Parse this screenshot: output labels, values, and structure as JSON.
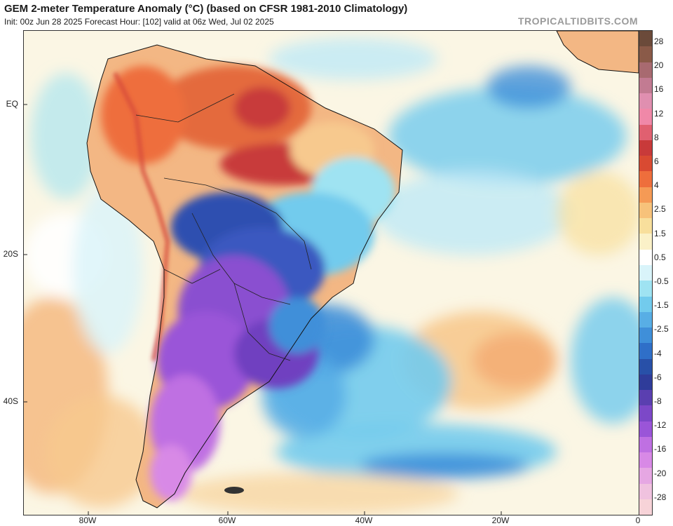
{
  "header": {
    "title": "GEM 2-meter Temperature Anomaly (°C) (based on CFSR 1981-2010 Climatology)",
    "subtitle": "Init: 00z Jun 28 2025   Forecast Hour: [102]   valid at 06z Wed, Jul 02 2025",
    "brand": "TROPICALTIDBITS.COM"
  },
  "axes": {
    "lat_labels": [
      "EQ",
      "20S",
      "40S"
    ],
    "lon_labels": [
      "80W",
      "60W",
      "40W",
      "20W",
      "0"
    ]
  },
  "colorbar": {
    "labels": [
      "28",
      "20",
      "16",
      "12",
      "8",
      "6",
      "4",
      "2.5",
      "1.5",
      "0.5",
      "-0.5",
      "-1.5",
      "-2.5",
      "-4",
      "-6",
      "-8",
      "-12",
      "-16",
      "-20",
      "-28"
    ],
    "colors": [
      "#6b4a3a",
      "#8a5a48",
      "#a86a70",
      "#c27b92",
      "#e08fb0",
      "#f088a8",
      "#e06070",
      "#c83a3a",
      "#d94a32",
      "#ee6e3c",
      "#f59a55",
      "#f7c27a",
      "#f8df9c",
      "#fbf1c8",
      "#ffffff",
      "#d9f4fa",
      "#9fe3f2",
      "#72cbed",
      "#58aee5",
      "#3f8fd9",
      "#2f6fc8",
      "#2850a8",
      "#2f3c9a",
      "#5a3fb0",
      "#7c48c8",
      "#9a55d8",
      "#bf70e2",
      "#d889e6",
      "#e6a7e3",
      "#f0c2df",
      "#f7d3d8"
    ]
  },
  "legend_colors": {
    "ocean_neutral": "#fbf6e4",
    "warm_red": "#d64a3a",
    "cold_purple": "#8a4fd0",
    "cold_blue": "#4a8ee0"
  }
}
